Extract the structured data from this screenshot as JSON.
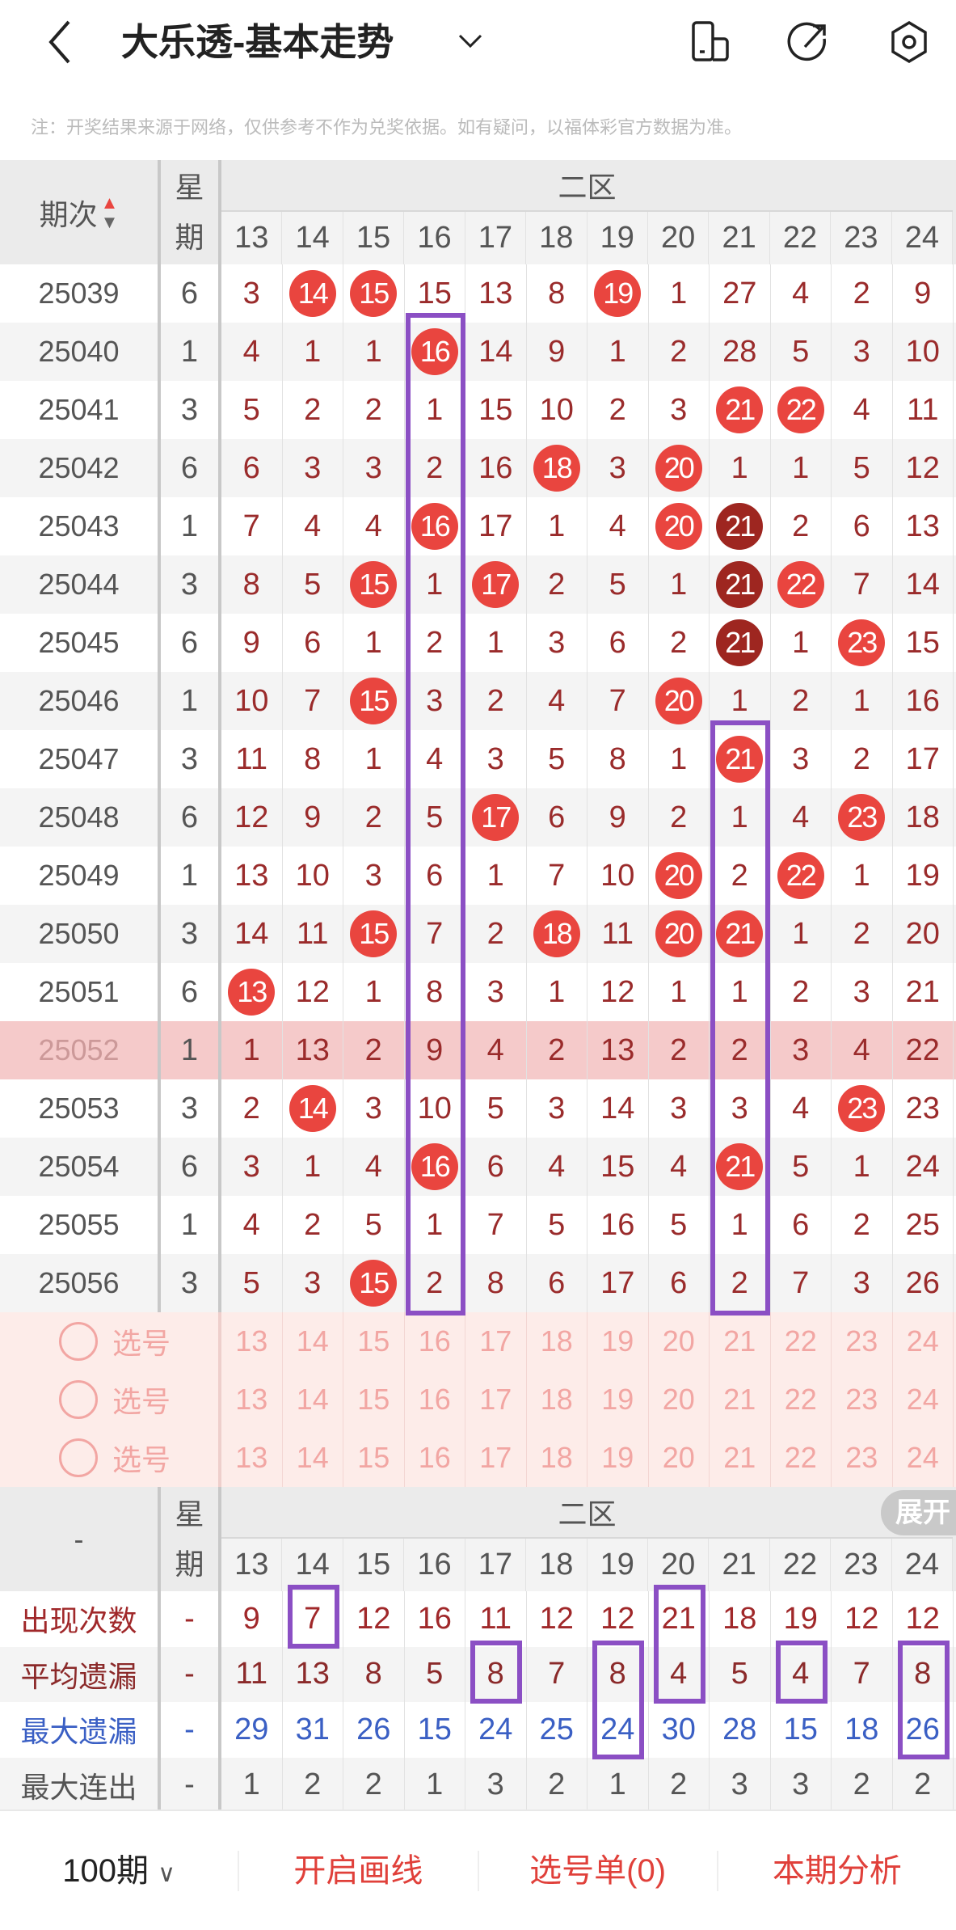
{
  "header": {
    "title": "大乐透-基本走势",
    "icons": [
      "back-icon",
      "chevron-down-icon",
      "phone-icon",
      "share-icon",
      "settings-icon"
    ]
  },
  "note": "注：开奖结果来源于网络，仅供参考不作为兑奖依据。如有疑问，以福体彩官方数据为准。",
  "table": {
    "col_issue": "期次",
    "col_week": "星期",
    "zone": "二区",
    "numbers": [
      "13",
      "14",
      "15",
      "16",
      "17",
      "18",
      "19",
      "20",
      "21",
      "22",
      "23",
      "24"
    ],
    "rows": [
      {
        "issue": "25039",
        "week": "6",
        "cells": [
          "3",
          "14",
          "15",
          "15",
          "13",
          "8",
          "19",
          "1",
          "27",
          "4",
          "2",
          "9"
        ],
        "hits": [
          1,
          2,
          6
        ]
      },
      {
        "issue": "25040",
        "week": "1",
        "cells": [
          "4",
          "1",
          "1",
          "16",
          "14",
          "9",
          "1",
          "2",
          "28",
          "5",
          "3",
          "10"
        ],
        "hits": [
          3
        ]
      },
      {
        "issue": "25041",
        "week": "3",
        "cells": [
          "5",
          "2",
          "2",
          "1",
          "15",
          "10",
          "2",
          "3",
          "21",
          "22",
          "4",
          "11"
        ],
        "hits": [
          8,
          9
        ]
      },
      {
        "issue": "25042",
        "week": "6",
        "cells": [
          "6",
          "3",
          "3",
          "2",
          "16",
          "18",
          "3",
          "20",
          "1",
          "1",
          "5",
          "12"
        ],
        "hits": [
          5,
          7
        ]
      },
      {
        "issue": "25043",
        "week": "1",
        "cells": [
          "7",
          "4",
          "4",
          "16",
          "17",
          "1",
          "4",
          "20",
          "21",
          "2",
          "6",
          "13"
        ],
        "hits": [
          3,
          7
        ],
        "dark_hits": [
          8
        ]
      },
      {
        "issue": "25044",
        "week": "3",
        "cells": [
          "8",
          "5",
          "15",
          "1",
          "17",
          "2",
          "5",
          "1",
          "21",
          "22",
          "7",
          "14"
        ],
        "hits": [
          2,
          4,
          9
        ],
        "dark_hits": [
          8
        ]
      },
      {
        "issue": "25045",
        "week": "6",
        "cells": [
          "9",
          "6",
          "1",
          "2",
          "1",
          "3",
          "6",
          "2",
          "21",
          "1",
          "23",
          "15"
        ],
        "hits": [
          10
        ],
        "dark_hits": [
          8
        ]
      },
      {
        "issue": "25046",
        "week": "1",
        "cells": [
          "10",
          "7",
          "15",
          "3",
          "2",
          "4",
          "7",
          "20",
          "1",
          "2",
          "1",
          "16"
        ],
        "hits": [
          2,
          7
        ]
      },
      {
        "issue": "25047",
        "week": "3",
        "cells": [
          "11",
          "8",
          "1",
          "4",
          "3",
          "5",
          "8",
          "1",
          "21",
          "3",
          "2",
          "17"
        ],
        "hits": [
          8
        ]
      },
      {
        "issue": "25048",
        "week": "6",
        "cells": [
          "12",
          "9",
          "2",
          "5",
          "17",
          "6",
          "9",
          "2",
          "1",
          "4",
          "23",
          "18"
        ],
        "hits": [
          4,
          10
        ]
      },
      {
        "issue": "25049",
        "week": "1",
        "cells": [
          "13",
          "10",
          "3",
          "6",
          "1",
          "7",
          "10",
          "20",
          "2",
          "22",
          "1",
          "19"
        ],
        "hits": [
          7,
          9
        ]
      },
      {
        "issue": "25050",
        "week": "3",
        "cells": [
          "14",
          "11",
          "15",
          "7",
          "2",
          "18",
          "11",
          "20",
          "21",
          "1",
          "2",
          "20"
        ],
        "hits": [
          2,
          5,
          7,
          8
        ]
      },
      {
        "issue": "25051",
        "week": "6",
        "cells": [
          "13",
          "12",
          "1",
          "8",
          "3",
          "1",
          "12",
          "1",
          "1",
          "2",
          "3",
          "21"
        ],
        "hits": [
          0
        ]
      },
      {
        "issue": "25052",
        "week": "1",
        "cells": [
          "1",
          "13",
          "2",
          "9",
          "4",
          "2",
          "13",
          "2",
          "2",
          "3",
          "4",
          "22"
        ],
        "hits": [],
        "highlight": true
      },
      {
        "issue": "25053",
        "week": "3",
        "cells": [
          "2",
          "14",
          "3",
          "10",
          "5",
          "3",
          "14",
          "3",
          "3",
          "4",
          "23",
          "23"
        ],
        "hits": [
          1,
          10
        ]
      },
      {
        "issue": "25054",
        "week": "6",
        "cells": [
          "3",
          "1",
          "4",
          "16",
          "6",
          "4",
          "15",
          "4",
          "21",
          "5",
          "1",
          "24"
        ],
        "hits": [
          3,
          8
        ]
      },
      {
        "issue": "25055",
        "week": "1",
        "cells": [
          "4",
          "2",
          "5",
          "1",
          "7",
          "5",
          "16",
          "5",
          "1",
          "6",
          "2",
          "25"
        ],
        "hits": []
      },
      {
        "issue": "25056",
        "week": "3",
        "cells": [
          "5",
          "3",
          "15",
          "2",
          "8",
          "6",
          "17",
          "6",
          "2",
          "7",
          "3",
          "26"
        ],
        "hits": [
          2
        ]
      }
    ],
    "pick_label": "选号",
    "pick_rows": 3,
    "annotations": [
      {
        "column": "16",
        "from": "25040",
        "to": "25056"
      },
      {
        "column": "21",
        "from": "25047",
        "to": "25056"
      }
    ]
  },
  "stats": {
    "col_label": "-",
    "col_week": "星期",
    "zone": "二区",
    "expand_label": "展开",
    "rows": [
      {
        "label": "出现次数",
        "week": "-",
        "values": [
          "9",
          "7",
          "12",
          "16",
          "11",
          "12",
          "12",
          "21",
          "18",
          "19",
          "12",
          "12"
        ],
        "color": "#a0282a"
      },
      {
        "label": "平均遗漏",
        "week": "-",
        "values": [
          "11",
          "13",
          "8",
          "5",
          "8",
          "7",
          "8",
          "4",
          "5",
          "4",
          "7",
          "8"
        ],
        "color": "#8b2a2a"
      },
      {
        "label": "最大遗漏",
        "week": "-",
        "values": [
          "29",
          "31",
          "26",
          "15",
          "24",
          "25",
          "24",
          "30",
          "28",
          "15",
          "18",
          "26"
        ],
        "color": "#3a5fc4"
      },
      {
        "label": "最大连出",
        "week": "-",
        "values": [
          "1",
          "2",
          "2",
          "1",
          "3",
          "2",
          "1",
          "2",
          "3",
          "3",
          "2",
          "2"
        ],
        "color": "#555555"
      }
    ],
    "annotations": [
      {
        "column": "14",
        "from": 0,
        "to": 0
      },
      {
        "column": "17",
        "from": 1,
        "to": 1
      },
      {
        "column": "19",
        "from": 1,
        "to": 2
      },
      {
        "column": "20",
        "from": 0,
        "to": 1
      },
      {
        "column": "22",
        "from": 1,
        "to": 1
      },
      {
        "column": "24",
        "from": 1,
        "to": 2
      }
    ]
  },
  "footer": {
    "period": "100期",
    "draw_lines": "开启画线",
    "pick_list": "选号单(0)",
    "analysis": "本期分析"
  },
  "colors": {
    "ball": "#e9453f",
    "ball_dark": "#9e2620",
    "annotation": "#8b4fc4",
    "accent": "#e0403a"
  }
}
